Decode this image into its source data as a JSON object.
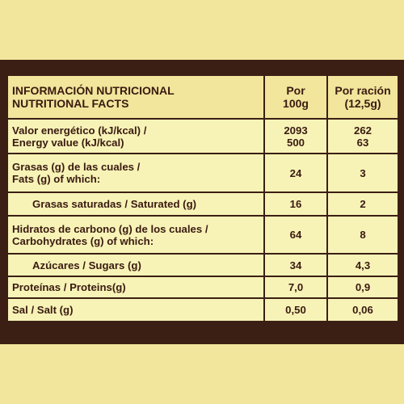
{
  "header": {
    "title_es": "INFORMACIÓN NUTRICIONAL",
    "title_en": "NUTRITIONAL FACTS",
    "col_per_100g_line1": "Por",
    "col_per_100g_line2": "100g",
    "col_per_serving_line1": "Por ración",
    "col_per_serving_line2": "(12,5g)"
  },
  "rows": [
    {
      "label_es": "Valor energético (kJ/kcal) /",
      "label_en": "Energy value (kJ/kcal)",
      "per100_a": "2093",
      "per100_b": "500",
      "serv_a": "262",
      "serv_b": "63"
    },
    {
      "label_es": "Grasas (g) de las cuales /",
      "label_en": "Fats (g) of which:",
      "per100": "24",
      "serving": "3"
    },
    {
      "label": "Grasas saturadas / Saturated (g)",
      "per100": "16",
      "serving": "2"
    },
    {
      "label_es": "Hidratos de carbono (g) de los cuales /",
      "label_en": "Carbohydrates (g) of which:",
      "per100": "64",
      "serving": "8"
    },
    {
      "label": "Azúcares / Sugars (g)",
      "per100": "34",
      "serving": "4,3"
    },
    {
      "label": "Proteínas  / Proteins(g)",
      "per100": "7,0",
      "serving": "0,9"
    },
    {
      "label": "Sal / Salt (g)",
      "per100": "0,50",
      "serving": "0,06"
    }
  ]
}
